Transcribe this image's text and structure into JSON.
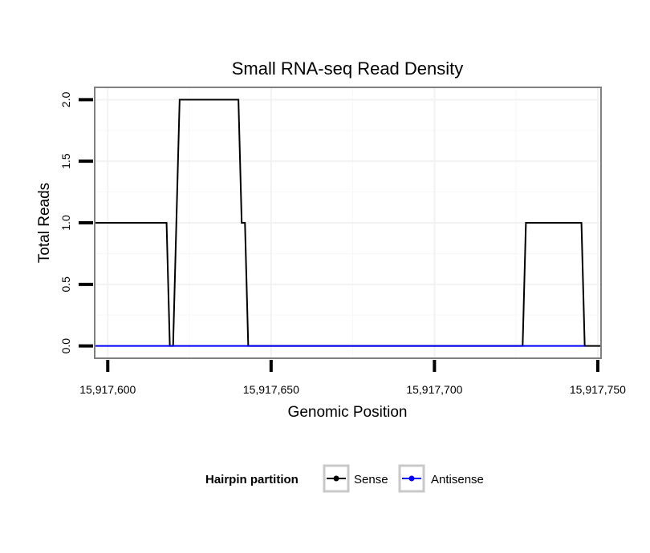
{
  "chart_data": {
    "type": "line",
    "title": "Small RNA-seq Read Density",
    "xlabel": "Genomic Position",
    "ylabel": "Total Reads",
    "xlim": [
      15917596,
      15917751
    ],
    "ylim": [
      -0.1,
      2.1
    ],
    "x_ticks": [
      15917600,
      15917650,
      15917700,
      15917750
    ],
    "x_tick_labels": [
      "15,917,600",
      "15,917,650",
      "15,917,700",
      "15,917,750"
    ],
    "y_ticks": [
      0,
      0.5,
      1,
      1.5,
      2
    ],
    "y_tick_labels": [
      "0.0",
      "0.5",
      "1.0",
      "1.5",
      "2.0"
    ],
    "grid": true,
    "legend": {
      "title": "Hairpin partition",
      "position": "bottom"
    },
    "series": [
      {
        "name": "Sense",
        "color": "#000000",
        "x": [
          15917596,
          15917618,
          15917619,
          15917620,
          15917622,
          15917640,
          15917641,
          15917642,
          15917643,
          15917727,
          15917728,
          15917745,
          15917746,
          15917751
        ],
        "y": [
          1,
          1,
          0,
          0,
          2,
          2,
          1,
          1,
          0,
          0,
          1,
          1,
          0,
          0
        ]
      },
      {
        "name": "Antisense",
        "color": "#0000ff",
        "x": [
          15917596,
          15917643,
          15917727,
          15917746
        ],
        "y": [
          0,
          0,
          0,
          0
        ]
      }
    ]
  }
}
